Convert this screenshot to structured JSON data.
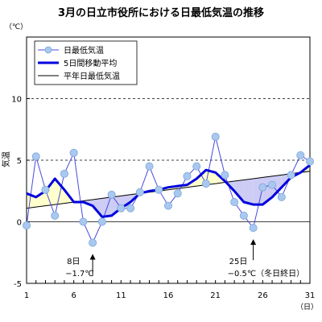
{
  "chart_data": {
    "type": "line",
    "title": "3月の日立市役所における日最低気温の推移",
    "y_unit": "（℃）",
    "x_unit": "（日）",
    "ylabel": "気温",
    "ylim": [
      -5,
      15
    ],
    "xlim": [
      1,
      31
    ],
    "y_ticks": [
      -5,
      0,
      5,
      10
    ],
    "x_ticks": [
      1,
      6,
      11,
      16,
      21,
      26,
      31
    ],
    "grid_y_dashed": [
      5,
      10
    ],
    "legend_position": "top-left",
    "x": [
      1,
      2,
      3,
      4,
      5,
      6,
      7,
      8,
      9,
      10,
      11,
      12,
      13,
      14,
      15,
      16,
      17,
      18,
      19,
      20,
      21,
      22,
      23,
      24,
      25,
      26,
      27,
      28,
      29,
      30,
      31
    ],
    "series": [
      {
        "name": "日最低気温",
        "style": "markers-thin-line",
        "color": "#4a4adf",
        "marker_fill": "#a8c8f0",
        "values": [
          -0.3,
          5.3,
          2.6,
          0.5,
          3.9,
          5.6,
          0.0,
          -1.7,
          0.0,
          2.2,
          1.1,
          1.1,
          2.4,
          4.5,
          2.6,
          1.3,
          2.3,
          3.7,
          4.5,
          3.1,
          6.9,
          3.8,
          1.6,
          0.5,
          -0.5,
          2.8,
          3.0,
          2.0,
          3.8,
          5.4,
          4.9
        ]
      },
      {
        "name": "5日間移動平均",
        "style": "thick-line",
        "color": "#0000dd",
        "values": [
          2.3,
          2.0,
          2.5,
          3.5,
          2.6,
          1.6,
          1.6,
          1.3,
          0.4,
          0.5,
          1.1,
          1.6,
          2.3,
          2.5,
          2.6,
          2.8,
          2.9,
          3.0,
          3.5,
          4.2,
          4.0,
          3.3,
          2.5,
          1.6,
          1.4,
          1.4,
          2.0,
          2.8,
          3.6,
          4.0,
          4.6
        ]
      },
      {
        "name": "平年日最低気温",
        "style": "thin-line",
        "color": "#000000",
        "values": [
          1.1,
          1.2,
          1.3,
          1.4,
          1.5,
          1.6,
          1.7,
          1.8,
          1.9,
          2.0,
          2.1,
          2.2,
          2.3,
          2.4,
          2.5,
          2.6,
          2.7,
          2.8,
          2.9,
          3.0,
          3.1,
          3.2,
          3.3,
          3.4,
          3.5,
          3.6,
          3.7,
          3.8,
          3.9,
          4.0,
          4.1
        ]
      }
    ],
    "fill_colors": {
      "above_normal": "#ffffcc",
      "below_normal": "#ccccf5"
    },
    "annotations": [
      {
        "day_label": "8日",
        "value_label": "−1.7℃",
        "x": 8,
        "y": -1.7
      },
      {
        "day_label": "25日",
        "value_label": "−0.5℃（冬日終日）",
        "x": 25,
        "y": -0.5
      }
    ]
  }
}
